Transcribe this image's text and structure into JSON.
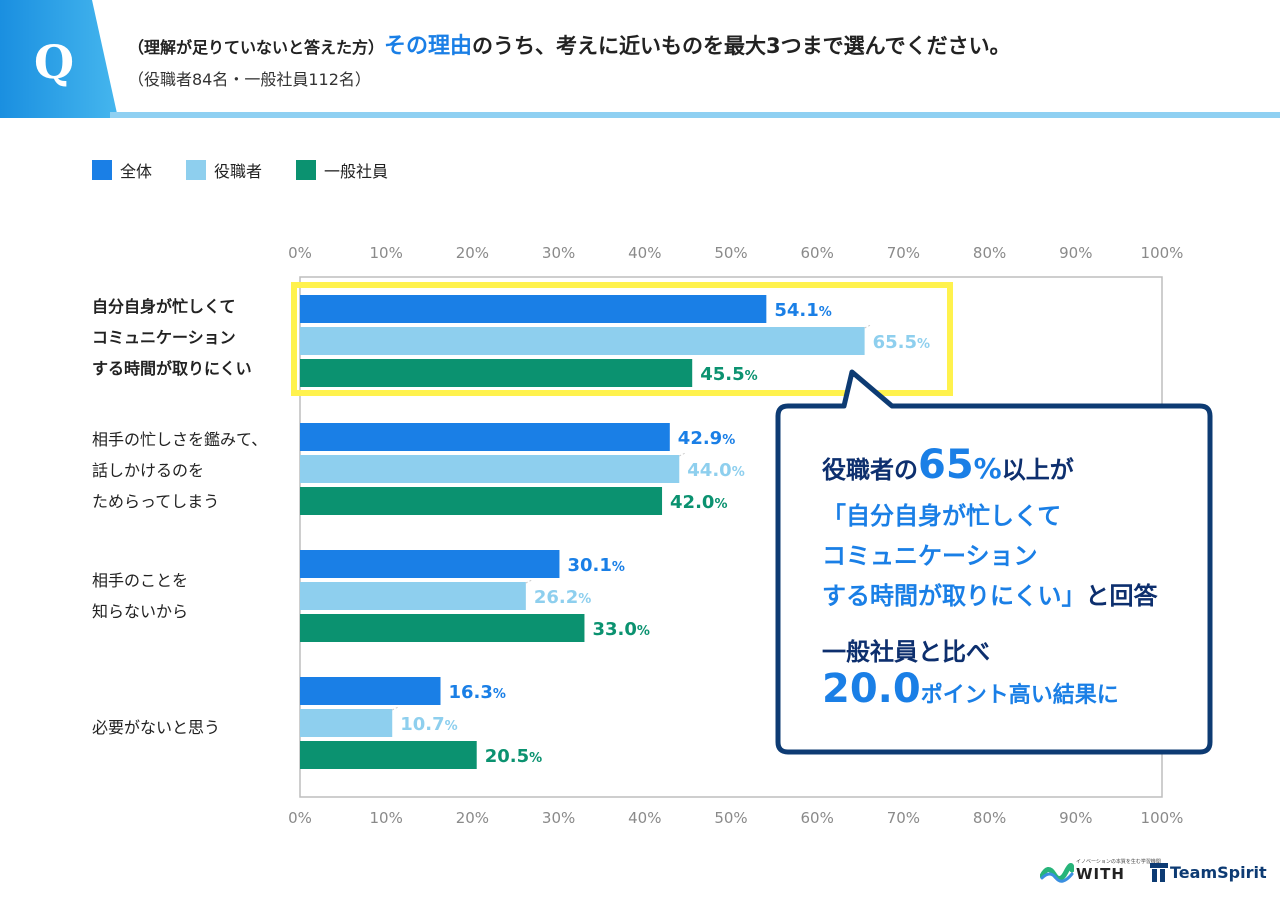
{
  "header": {
    "q_letter": "Q",
    "title_prefix": "（理解が足りていないと答えた方）",
    "title_highlight": "その理由",
    "title_rest": "のうち、考えに近いものを最大3つまで選んでください。",
    "subtitle": "（役職者84名・一般社員112名）"
  },
  "colors": {
    "header_blue": "#1a8fe0",
    "header_light": "#8fd0f2",
    "all": "#1a7fe6",
    "manager": "#8ecfee",
    "staff": "#0b9270",
    "highlight_box": "#fff24d",
    "callout_border": "#0d3b73"
  },
  "chart_data": {
    "type": "bar",
    "orientation": "horizontal",
    "categories": [
      "自分自身が忙しくて\nコミュニケーション\nする時間が取りにくい",
      "相手の忙しさを鑑みて、\n話しかけるのを\nためらってしまう",
      "相手のことを\n知らないから",
      "必要がないと思う"
    ],
    "series": [
      {
        "name": "全体",
        "values": [
          54.1,
          42.9,
          30.1,
          16.3
        ]
      },
      {
        "name": "役職者",
        "values": [
          65.5,
          44.0,
          26.2,
          10.7
        ]
      },
      {
        "name": "一般社員",
        "values": [
          45.5,
          42.0,
          33.0,
          20.5
        ]
      }
    ],
    "xlim": [
      0,
      100
    ],
    "xticks": [
      "0%",
      "10%",
      "20%",
      "30%",
      "40%",
      "50%",
      "60%",
      "70%",
      "80%",
      "90%",
      "100%"
    ],
    "value_unit": "%",
    "legend_position": "top-left",
    "highlighted_category": 0
  },
  "callout": {
    "line1_a": "役職者の",
    "line1_num": "65",
    "line1_pct": "%",
    "line1_b": "以上が",
    "line2": "「自分自身が忙しくて",
    "line3": "コミュニケーション",
    "line4_a": "する時間が取りにくい」",
    "line4_b": "と回答",
    "line5": "一般社員と比べ",
    "line6_num": "20.0",
    "line6_b": "ポイント高い結果に"
  },
  "logos": {
    "with_small": "イノベーションの本質を生む学習機関",
    "with": "WITH",
    "teamspirit": "TeamSpirit"
  }
}
